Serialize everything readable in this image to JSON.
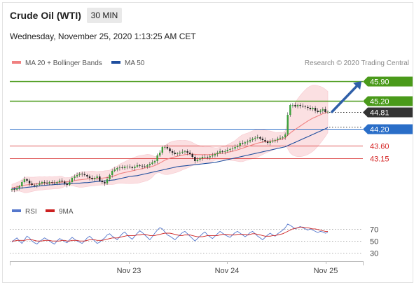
{
  "header": {
    "instrument": "Crude Oil (WTI)",
    "timeframe": "30 MIN",
    "datetime": "Wednesday, November 25, 2020 1:13:25 AM CET"
  },
  "legend": {
    "items": [
      {
        "label": "MA 20 + Bollinger Bands",
        "color": "#f08080"
      },
      {
        "label": "MA 50",
        "color": "#1f4e9e"
      }
    ],
    "credit": "Research © 2020 Trading Central"
  },
  "colors": {
    "resistance": "#4a9a1a",
    "current": "#333333",
    "pivot": "#2a6ec8",
    "support": "#d42020",
    "arrow": "#2f5fa8",
    "candle_up": "#3aa03a",
    "candle_down": "#222222",
    "bollinger_fill": "#fadadd",
    "ma20": "#f08080",
    "ma50": "#1f4e9e",
    "rsi": "#5577cc",
    "rsi_ma": "#cc2020"
  },
  "chart_data": [
    {
      "type": "candlestick",
      "ylim": [
        41.8,
        46.3
      ],
      "x_ticks": [
        "Nov 23",
        "Nov 24",
        "Nov 25"
      ],
      "levels": [
        {
          "value": 45.9,
          "label": "45.90",
          "kind": "resistance"
        },
        {
          "value": 45.2,
          "label": "45.20",
          "kind": "resistance"
        },
        {
          "value": 44.81,
          "label": "44.81",
          "kind": "current"
        },
        {
          "value": 44.2,
          "label": "44.20",
          "kind": "pivot"
        },
        {
          "value": 43.6,
          "label": "43.60",
          "kind": "support"
        },
        {
          "value": 43.15,
          "label": "43.15",
          "kind": "support"
        }
      ],
      "close": [
        42.05,
        42.03,
        42.08,
        42.15,
        42.3,
        42.4,
        42.35,
        42.25,
        42.2,
        42.18,
        42.2,
        42.25,
        42.3,
        42.28,
        42.25,
        42.3,
        42.28,
        42.26,
        42.3,
        42.35,
        42.32,
        42.25,
        42.2,
        42.3,
        42.45,
        42.5,
        42.55,
        42.6,
        42.58,
        42.55,
        42.5,
        42.45,
        42.4,
        42.45,
        42.5,
        42.35,
        42.3,
        42.25,
        42.4,
        42.55,
        42.7,
        42.75,
        42.8,
        42.82,
        42.8,
        42.85,
        42.85,
        42.83,
        42.8,
        42.85,
        42.9,
        42.88,
        42.86,
        42.85,
        42.9,
        42.95,
        43.0,
        43.05,
        43.25,
        43.35,
        43.55,
        43.55,
        43.5,
        43.4,
        43.35,
        43.3,
        43.32,
        43.35,
        43.38,
        43.4,
        43.35,
        43.3,
        43.2,
        43.05,
        43.1,
        43.15,
        43.2,
        43.2,
        43.18,
        43.22,
        43.25,
        43.3,
        43.35,
        43.4,
        43.38,
        43.4,
        43.45,
        43.48,
        43.5,
        43.55,
        43.6,
        43.7,
        43.68,
        43.72,
        43.75,
        43.8,
        43.85,
        43.88,
        43.9,
        43.85,
        43.8,
        43.75,
        43.7,
        43.75,
        43.78,
        43.8,
        43.85,
        43.88,
        43.9,
        44.0,
        44.7,
        45.05,
        45.05,
        45.0,
        45.05,
        45.02,
        45.0,
        44.98,
        44.95,
        44.9,
        44.95,
        44.85,
        44.8,
        44.85,
        44.9,
        44.8,
        44.81
      ],
      "ma20": [
        42.1,
        42.11,
        42.13,
        42.15,
        42.17,
        42.19,
        42.2,
        42.21,
        42.22,
        42.23,
        42.24,
        42.25,
        42.25,
        42.26,
        42.26,
        42.27,
        42.27,
        42.28,
        42.28,
        42.29,
        42.3,
        42.3,
        42.31,
        42.32,
        42.33,
        42.35,
        42.37,
        42.38,
        42.39,
        42.4,
        42.41,
        42.42,
        42.43,
        42.43,
        42.43,
        42.44,
        42.44,
        42.45,
        42.46,
        42.47,
        42.5,
        42.53,
        42.56,
        42.6,
        42.62,
        42.64,
        42.66,
        42.68,
        42.7,
        42.72,
        42.74,
        42.76,
        42.78,
        42.8,
        42.82,
        42.84,
        42.86,
        42.89,
        42.93,
        42.98,
        43.03,
        43.08,
        43.12,
        43.15,
        43.18,
        43.2,
        43.22,
        43.24,
        43.26,
        43.28,
        43.29,
        43.3,
        43.3,
        43.29,
        43.28,
        43.28,
        43.28,
        43.28,
        43.28,
        43.28,
        43.29,
        43.3,
        43.31,
        43.32,
        43.33,
        43.34,
        43.36,
        43.38,
        43.4,
        43.42,
        43.45,
        43.48,
        43.51,
        43.54,
        43.57,
        43.6,
        43.63,
        43.66,
        43.69,
        43.71,
        43.73,
        43.74,
        43.75,
        43.76,
        43.77,
        43.78,
        43.8,
        43.82,
        43.84,
        43.88,
        43.97,
        44.05,
        44.12,
        44.18,
        44.24,
        44.3,
        44.36,
        44.42,
        44.48,
        44.53,
        44.58,
        44.62,
        44.66,
        44.7,
        44.74,
        44.77,
        44.8
      ],
      "ma50": [
        42.05,
        42.06,
        42.07,
        42.08,
        42.09,
        42.1,
        42.11,
        42.12,
        42.13,
        42.14,
        42.15,
        42.16,
        42.17,
        42.18,
        42.19,
        42.2,
        42.2,
        42.21,
        42.22,
        42.22,
        42.23,
        42.23,
        42.24,
        42.24,
        42.25,
        42.25,
        42.26,
        42.26,
        42.27,
        42.28,
        42.28,
        42.29,
        42.3,
        42.31,
        42.32,
        42.33,
        42.33,
        42.34,
        42.35,
        42.36,
        42.37,
        42.38,
        42.4,
        42.42,
        42.44,
        42.46,
        42.48,
        42.5,
        42.51,
        42.52,
        42.53,
        42.55,
        42.57,
        42.59,
        42.61,
        42.63,
        42.65,
        42.67,
        42.69,
        42.71,
        42.73,
        42.75,
        42.77,
        42.79,
        42.81,
        42.83,
        42.85,
        42.86,
        42.87,
        42.88,
        42.89,
        42.9,
        42.91,
        42.92,
        42.93,
        42.94,
        42.95,
        42.96,
        42.97,
        42.98,
        42.99,
        43.0,
        43.02,
        43.04,
        43.06,
        43.08,
        43.1,
        43.12,
        43.14,
        43.16,
        43.18,
        43.2,
        43.22,
        43.24,
        43.26,
        43.28,
        43.3,
        43.32,
        43.34,
        43.36,
        43.38,
        43.4,
        43.42,
        43.44,
        43.46,
        43.48,
        43.5,
        43.52,
        43.54,
        43.56,
        43.6,
        43.64,
        43.68,
        43.72,
        43.76,
        43.8,
        43.84,
        43.88,
        43.92,
        43.96,
        44.0,
        44.04,
        44.08,
        44.12,
        44.16,
        44.2,
        44.25
      ]
    },
    {
      "type": "line",
      "legend": [
        "RSI",
        "9MA"
      ],
      "ylim": [
        20,
        85
      ],
      "y_ticks": [
        70,
        50,
        30
      ],
      "rsi": [
        48,
        52,
        55,
        50,
        46,
        52,
        58,
        55,
        50,
        47,
        45,
        49,
        52,
        55,
        53,
        50,
        47,
        45,
        50,
        54,
        52,
        49,
        47,
        52,
        56,
        53,
        50,
        48,
        46,
        50,
        55,
        58,
        54,
        50,
        46,
        48,
        52,
        55,
        60,
        62,
        58,
        55,
        52,
        57,
        62,
        65,
        60,
        56,
        53,
        58,
        63,
        67,
        64,
        60,
        56,
        52,
        57,
        63,
        68,
        72,
        70,
        65,
        60,
        58,
        55,
        52,
        56,
        60,
        64,
        66,
        62,
        58,
        54,
        50,
        54,
        58,
        62,
        65,
        60,
        57,
        54,
        58,
        62,
        66,
        63,
        60,
        58,
        56,
        60,
        64,
        66,
        63,
        60,
        57,
        60,
        64,
        66,
        62,
        58,
        55,
        52,
        56,
        60,
        63,
        60,
        58,
        62,
        65,
        68,
        72,
        78,
        76,
        73,
        70,
        72,
        74,
        72,
        70,
        68,
        70,
        68,
        66,
        64,
        66,
        65,
        63,
        64
      ],
      "ma9": [
        50,
        50,
        51,
        51,
        51,
        51,
        52,
        52,
        52,
        51,
        50,
        50,
        50,
        51,
        51,
        51,
        50,
        50,
        50,
        50,
        51,
        51,
        50,
        50,
        51,
        51,
        51,
        50,
        50,
        50,
        51,
        52,
        52,
        52,
        51,
        51,
        51,
        52,
        53,
        54,
        55,
        55,
        55,
        56,
        57,
        58,
        59,
        59,
        59,
        59,
        60,
        60,
        61,
        61,
        60,
        59,
        59,
        59,
        60,
        61,
        62,
        63,
        63,
        63,
        62,
        61,
        60,
        59,
        59,
        60,
        60,
        60,
        59,
        58,
        57,
        57,
        57,
        58,
        59,
        59,
        59,
        59,
        59,
        60,
        61,
        61,
        61,
        60,
        60,
        60,
        61,
        61,
        61,
        61,
        60,
        61,
        62,
        62,
        61,
        60,
        59,
        58,
        58,
        58,
        59,
        59,
        60,
        61,
        62,
        64,
        66,
        68,
        70,
        71,
        72,
        73,
        73,
        72,
        72,
        71,
        70,
        70,
        69,
        68,
        67,
        66,
        66
      ]
    }
  ]
}
